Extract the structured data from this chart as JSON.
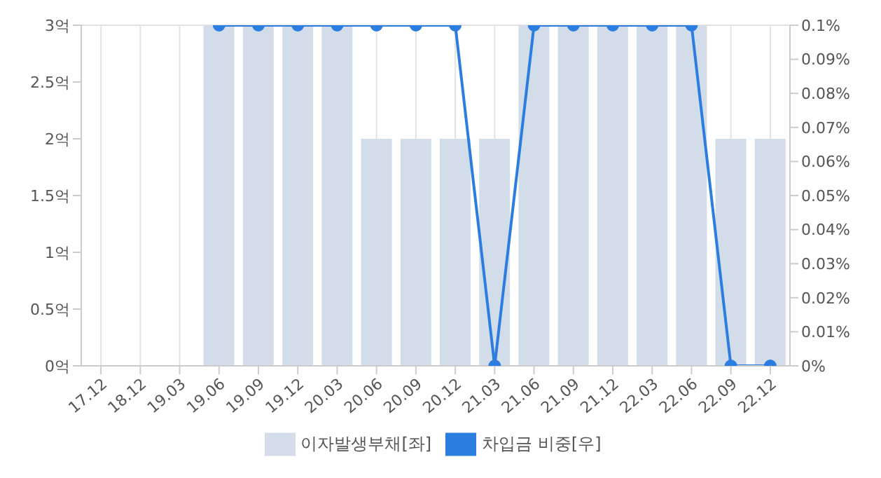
{
  "chart_data": {
    "type": "bar",
    "categories": [
      "17.12",
      "18.12",
      "19.03",
      "19.06",
      "19.09",
      "19.12",
      "20.03",
      "20.06",
      "20.09",
      "20.12",
      "21.03",
      "21.06",
      "21.09",
      "21.12",
      "22.03",
      "22.06",
      "22.09",
      "22.12"
    ],
    "series": [
      {
        "name": "이자발생부채[좌]",
        "color": "#d3dde9",
        "values": [
          null,
          null,
          null,
          3,
          3,
          3,
          3,
          2,
          2,
          2,
          2,
          3,
          3,
          3,
          3,
          3,
          2,
          2
        ]
      },
      {
        "name": "차입금 비중[우]",
        "type": "line",
        "axis": "y2",
        "color": "#2b7de0",
        "values": [
          null,
          null,
          null,
          0.1,
          0.1,
          0.1,
          0.1,
          0.1,
          0.1,
          0.1,
          0,
          0.1,
          0.1,
          0.1,
          0.1,
          0.1,
          0,
          0
        ]
      }
    ],
    "ylim": [
      0,
      3
    ],
    "yticks": [
      {
        "value": 0,
        "label": "0억"
      },
      {
        "value": 0.5,
        "label": "0.5억"
      },
      {
        "value": 1,
        "label": "1억"
      },
      {
        "value": 1.5,
        "label": "1.5억"
      },
      {
        "value": 2,
        "label": "2억"
      },
      {
        "value": 2.5,
        "label": "2.5억"
      },
      {
        "value": 3,
        "label": "3억"
      }
    ],
    "y2lim": [
      0,
      0.1
    ],
    "y2ticks": [
      {
        "value": 0,
        "label": "0%"
      },
      {
        "value": 0.01,
        "label": "0.01%"
      },
      {
        "value": 0.02,
        "label": "0.02%"
      },
      {
        "value": 0.03,
        "label": "0.03%"
      },
      {
        "value": 0.04,
        "label": "0.04%"
      },
      {
        "value": 0.05,
        "label": "0.05%"
      },
      {
        "value": 0.06,
        "label": "0.06%"
      },
      {
        "value": 0.07,
        "label": "0.07%"
      },
      {
        "value": 0.08,
        "label": "0.08%"
      },
      {
        "value": 0.09,
        "label": "0.09%"
      },
      {
        "value": 0.1,
        "label": "0.1%"
      }
    ],
    "grid": true,
    "legend": "bottom",
    "marker": "circle"
  }
}
